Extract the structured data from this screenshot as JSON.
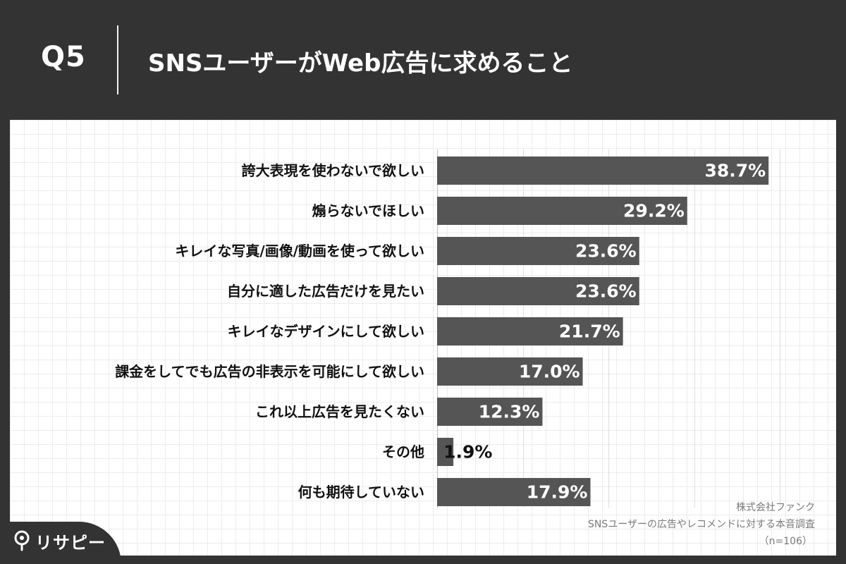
{
  "header": {
    "question_number": "Q5",
    "title": "SNSユーザーがWeb広告に求めること"
  },
  "colors": {
    "background": "#333333",
    "bar": "#555555",
    "panel": "#ffffff",
    "grid": "#dddddd",
    "value_text_inside": "#ffffff",
    "value_text_outside": "#111111"
  },
  "chart_data": {
    "type": "bar",
    "orientation": "horizontal",
    "categories": [
      "誇大表現を使わないで欲しい",
      "煽らないでほしい",
      "キレイな写真/画像/動画を使って欲しい",
      "自分に適した広告だけを見たい",
      "キレイなデザインにして欲しい",
      "課金をしてでも広告の非表示を可能にして欲しい",
      "これ以上広告を見たくない",
      "その他",
      "何も期待していない"
    ],
    "values": [
      38.7,
      29.2,
      23.6,
      23.6,
      21.7,
      17.0,
      12.3,
      1.9,
      17.9
    ],
    "value_labels": [
      "38.7%",
      "29.2%",
      "23.6%",
      "23.6%",
      "21.7%",
      "17.0%",
      "12.3%",
      "1.9%",
      "17.9%"
    ],
    "unit": "%",
    "xlim": [
      0,
      40
    ],
    "grid_x_values": [
      0,
      10,
      20,
      30,
      40
    ],
    "legend": "none"
  },
  "source": {
    "company": "株式会社ファンク",
    "survey": "SNSユーザーの広告やレコメンドに対する本音調査",
    "sample": "（n=106）"
  },
  "logo": {
    "text": "リサピー",
    "icon": "pin-icon"
  }
}
